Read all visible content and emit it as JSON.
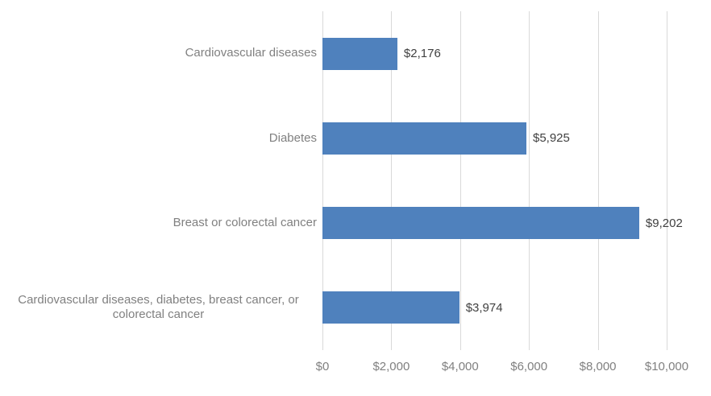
{
  "chart_data": {
    "type": "bar",
    "orientation": "horizontal",
    "title": "",
    "xlabel": "",
    "ylabel": "",
    "legend": "none",
    "grid": "vertical-only",
    "categories": [
      "Cardiovascular diseases",
      "Diabetes",
      "Breast or colorectal cancer",
      "Cardiovascular diseases, diabetes, breast cancer, or colorectal cancer"
    ],
    "values": [
      2176,
      5925,
      9202,
      3974
    ],
    "data_labels": [
      "$2,176",
      "$5,925",
      "$9,202",
      "$3,974"
    ],
    "x_axis": {
      "range": [
        0,
        10000
      ],
      "tick_values": [
        0,
        2000,
        4000,
        6000,
        8000,
        10000
      ],
      "tick_labels": [
        "$0",
        "$2,000",
        "$4,000",
        "$6,000",
        "$8,000",
        "$10,000"
      ]
    },
    "colors": {
      "bar": "#4f81bd",
      "gridline": "#d9d9d9",
      "axis_text": "#808080",
      "data_label_text": "#404040",
      "background": "#ffffff"
    }
  }
}
